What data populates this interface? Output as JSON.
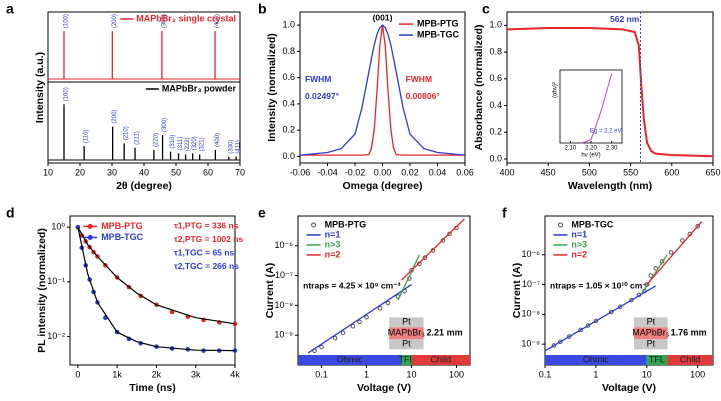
{
  "chart_data": [
    {
      "type": "xrd",
      "panel": "a",
      "xlabel": "2θ (degree)",
      "ylabel": "Intensity (a.u.)",
      "xlim": [
        10,
        70
      ],
      "xticks": [
        10,
        20,
        30,
        40,
        50,
        60,
        70
      ],
      "ylim": [
        0,
        1.4
      ],
      "series": [
        {
          "name": "MAPbBr₃ single crystal",
          "color": "#e8262a",
          "label_color": "#2b3bd1",
          "x": [
            15,
            30.1,
            45.6,
            62.2
          ],
          "values": [
            1,
            1,
            1,
            1
          ],
          "peak_labels": [
            "(100)",
            "(200)",
            "(300)",
            "(400)"
          ]
        },
        {
          "name": "MAPbBr₃ powder",
          "color": "#000000",
          "label_color": "#2b3bd1",
          "x": [
            15,
            21.3,
            30.2,
            33.8,
            37.2,
            43.1,
            45.8,
            48.3,
            50.8,
            53.0,
            55.2,
            57.4,
            62.3,
            66.5,
            68.8
          ],
          "values": [
            1.0,
            0.25,
            0.6,
            0.3,
            0.22,
            0.18,
            0.45,
            0.15,
            0.12,
            0.1,
            0.12,
            0.1,
            0.18,
            0.06,
            0.06
          ],
          "peak_labels": [
            "(100)",
            "(110)",
            "(200)",
            "(210)",
            "(211)",
            "(220)",
            "(300)",
            "(310)",
            "(311)",
            "(222)",
            "(320)",
            "(321)",
            "(400)",
            "(330)",
            "(411)"
          ]
        }
      ]
    },
    {
      "type": "line",
      "panel": "b",
      "xlabel": "Omega (degree)",
      "ylabel": "Intensity (normalized)",
      "xlim": [
        -0.06,
        0.06
      ],
      "xticks": [
        -0.06,
        -0.04,
        -0.02,
        {
          "value": 0,
          "label": "0.00"
        },
        0.02,
        0.04,
        0.06
      ],
      "ylim": [
        -0.05,
        1.1
      ],
      "yticks": [
        {
          "value": 0,
          "label": "0.0"
        },
        0.2,
        0.4,
        0.6,
        0.8,
        {
          "value": 1,
          "label": "1.0"
        }
      ],
      "series": [
        {
          "name": "MPB-PTG",
          "color": "#e8262a",
          "x": [
            -0.06,
            -0.04,
            -0.03,
            -0.02,
            -0.015,
            -0.01,
            -0.008,
            -0.006,
            -0.004,
            -0.002,
            0,
            0.002,
            0.004,
            0.006,
            0.008,
            0.01,
            0.015,
            0.02,
            0.03,
            0.04,
            0.06
          ],
          "values": [
            0.01,
            0.01,
            0.01,
            0.01,
            0.01,
            0.014,
            0.065,
            0.21,
            0.5,
            0.84,
            1,
            0.84,
            0.5,
            0.21,
            0.065,
            0.014,
            0.01,
            0.01,
            0.01,
            0.01,
            0.01
          ]
        },
        {
          "name": "MPB-TGC",
          "color": "#2b3bd1",
          "x": [
            -0.06,
            -0.04,
            -0.03,
            -0.02,
            -0.015,
            -0.01,
            -0.008,
            -0.006,
            -0.004,
            -0.002,
            0,
            0.002,
            0.004,
            0.006,
            0.008,
            0.01,
            0.015,
            0.02,
            0.03,
            0.04,
            0.06
          ],
          "values": [
            0.01,
            0.03,
            0.06,
            0.17,
            0.37,
            0.64,
            0.75,
            0.85,
            0.93,
            0.98,
            1,
            0.98,
            0.93,
            0.85,
            0.75,
            0.64,
            0.37,
            0.17,
            0.06,
            0.03,
            0.01
          ]
        }
      ],
      "annotations": [
        {
          "text": "(001)",
          "color": "#000000"
        },
        {
          "text": "FWHM",
          "color": "#2b3bd1"
        },
        {
          "text": "0.02497°",
          "color": "#2b3bd1"
        },
        {
          "text": "FWHM",
          "color": "#e8262a"
        },
        {
          "text": "0.00806°",
          "color": "#e8262a"
        }
      ]
    },
    {
      "type": "line",
      "panel": "c",
      "xlabel": "Wavelength (nm)",
      "ylabel": "Absorbance (normalized)",
      "xlim": [
        400,
        650
      ],
      "xticks": [
        400,
        450,
        500,
        550,
        600,
        650
      ],
      "ylim": [
        -0.03,
        1.1
      ],
      "yticks": [
        {
          "value": 0,
          "label": "0.0"
        },
        0.2,
        0.4,
        0.6,
        0.8,
        {
          "value": 1,
          "label": "1.0"
        }
      ],
      "series": [
        {
          "color": "#e8262a",
          "x": [
            400,
            450,
            500,
            540,
            555,
            560,
            563,
            566,
            570,
            575,
            580,
            600,
            650
          ],
          "values": [
            0.97,
            0.98,
            0.98,
            0.97,
            0.95,
            0.85,
            0.55,
            0.3,
            0.12,
            0.06,
            0.04,
            0.03,
            0.02
          ]
        }
      ],
      "vline": 562,
      "vline_color": "#2b3bd1",
      "annotations": [
        {
          "text": "562 nm",
          "color": "#2b3bd1"
        }
      ],
      "inset": {
        "xlabel": "hν (eV)",
        "ylabel": "(αhν)²",
        "xlim": [
          2.05,
          2.35
        ],
        "xticks": [
          {
            "value": 2.1,
            "label": "2.10"
          },
          {
            "value": 2.2,
            "label": "2.20"
          },
          {
            "value": 2.3,
            "label": "2.30"
          }
        ],
        "ylim": [
          0,
          1
        ],
        "color": "#d040d0",
        "x": [
          2.15,
          2.18,
          2.2,
          2.22,
          2.25,
          2.28,
          2.3
        ],
        "values": [
          0,
          0.02,
          0.05,
          0.2,
          0.45,
          0.75,
          0.95
        ],
        "annotation": "Eg = 2.2 eV"
      }
    },
    {
      "type": "decay",
      "panel": "d",
      "xlabel": "Time (ns)",
      "ylabel": "PL intensity (normalized)",
      "xlim": [
        -200,
        4000
      ],
      "xticks": [
        0,
        {
          "value": 1000,
          "label": "1k"
        },
        {
          "value": 2000,
          "label": "2k"
        },
        {
          "value": 3000,
          "label": "3k"
        },
        {
          "value": 4000,
          "label": "4k"
        }
      ],
      "log_y": true,
      "ylim": [
        0.003,
        1.6
      ],
      "yticks": [
        {
          "value": 0.01,
          "label": "10⁻²"
        },
        {
          "value": 0.1,
          "label": "10⁻¹"
        },
        {
          "value": 1,
          "label": "10⁰"
        }
      ],
      "series": [
        {
          "name": "MPB-PTG",
          "color": "#e8262a",
          "x": [
            0,
            100,
            200,
            300,
            400,
            500,
            700,
            1000,
            1300,
            1600,
            2000,
            2400,
            2800,
            3200,
            3600,
            4000
          ],
          "values": [
            1,
            0.7,
            0.55,
            0.43,
            0.35,
            0.29,
            0.2,
            0.12,
            0.08,
            0.055,
            0.038,
            0.028,
            0.023,
            0.02,
            0.018,
            0.017
          ]
        },
        {
          "name": "MPB-TGC",
          "color": "#2b3bd1",
          "x": [
            0,
            100,
            200,
            300,
            400,
            500,
            700,
            1000,
            1300,
            1600,
            2000,
            2400,
            2800,
            3200,
            3600,
            4000
          ],
          "values": [
            1,
            0.42,
            0.2,
            0.11,
            0.065,
            0.042,
            0.022,
            0.012,
            0.009,
            0.0075,
            0.0065,
            0.006,
            0.0058,
            0.0055,
            0.0055,
            0.0055
          ]
        }
      ],
      "fits": [
        {
          "color": "#000000",
          "x": [
            0,
            250,
            500,
            1000,
            1500,
            2000,
            3000,
            4000
          ],
          "values": [
            1,
            0.48,
            0.29,
            0.12,
            0.062,
            0.038,
            0.022,
            0.017
          ]
        },
        {
          "color": "#000000",
          "x": [
            0,
            250,
            500,
            1000,
            1500,
            2000,
            3000,
            4000
          ],
          "values": [
            1,
            0.14,
            0.042,
            0.012,
            0.008,
            0.0065,
            0.0056,
            0.0055
          ]
        }
      ],
      "annotations": [
        {
          "text": "τ1,PTG = 336 ns",
          "color": "#e8262a"
        },
        {
          "text": "τ2,PTG = 1002 ns",
          "color": "#e8262a"
        },
        {
          "text": "τ1,TGC = 65 ns",
          "color": "#2b3bd1"
        },
        {
          "text": "τ2,TGC = 266 ns",
          "color": "#2b3bd1"
        }
      ]
    },
    {
      "type": "sclc",
      "panel": "e",
      "xlabel": "Voltage (V)",
      "ylabel": "Current (A)",
      "log_x": true,
      "xlim": [
        0.03,
        200
      ],
      "xticks": [
        0.1,
        1,
        10,
        100
      ],
      "log_y": true,
      "ylim": [
        1e-10,
        1e-05
      ],
      "yticks": [
        {
          "value": 1e-09,
          "label": "10⁻⁹"
        },
        {
          "value": 1e-08,
          "label": "10⁻⁸"
        },
        {
          "value": 1e-07,
          "label": "10⁻⁷"
        },
        {
          "value": 1e-06,
          "label": "10⁻⁶"
        }
      ],
      "series": [
        {
          "name": "MPB-PTG",
          "color": "#555555",
          "x": [
            0.07,
            0.1,
            0.2,
            0.3,
            0.5,
            0.7,
            1,
            2,
            3,
            5,
            7,
            9,
            10,
            15,
            20,
            30,
            50,
            70,
            100
          ],
          "values": [
            3e-10,
            4e-10,
            8e-10,
            1.2e-09,
            2e-09,
            2.8e-09,
            4e-09,
            8e-09,
            1.2e-08,
            2e-08,
            3e-08,
            8e-08,
            1.5e-07,
            2.5e-07,
            4e-07,
            7e-07,
            1.5e-06,
            2.5e-06,
            4e-06
          ]
        }
      ],
      "fits": [
        {
          "name": "n=1",
          "color": "#2b3bd1",
          "x": [
            0.05,
            10
          ],
          "values": [
            2.5e-10,
            5e-08
          ]
        },
        {
          "name": "n>3",
          "color": "#3aa54a",
          "x": [
            5,
            15
          ],
          "values": [
            1.5e-08,
            5e-07
          ]
        },
        {
          "name": "n=2",
          "color": "#e8262a",
          "x": [
            6,
            150
          ],
          "values": [
            7e-08,
            8e-06
          ]
        }
      ],
      "annotations": [
        {
          "text": "ntraps = 4.25 × 10⁹ cm⁻³",
          "color": "#000000"
        }
      ],
      "device": {
        "top": "Pt",
        "layer": "MAPbBr₃",
        "bottom": "Pt",
        "thickness": "2.21 mm"
      },
      "regions": [
        {
          "label": "Ohmic",
          "from": 0.03,
          "to": 6,
          "color": "#3a49e0"
        },
        {
          "label": "TFL",
          "from": 6,
          "to": 10,
          "color": "#2fa84f"
        },
        {
          "label": "Child",
          "from": 10,
          "to": 200,
          "color": "#e03a3a"
        }
      ]
    },
    {
      "type": "sclc",
      "panel": "f",
      "xlabel": "Voltage (V)",
      "ylabel": "Current (A)",
      "log_x": true,
      "xlim": [
        0.1,
        200
      ],
      "xticks": [
        0.1,
        1,
        10,
        100
      ],
      "log_y": true,
      "ylim": [
        2e-10,
        2e-05
      ],
      "yticks": [
        {
          "value": 1e-09,
          "label": "10⁻⁹"
        },
        {
          "value": 1e-08,
          "label": "10⁻⁸"
        },
        {
          "value": 1e-07,
          "label": "10⁻⁷"
        },
        {
          "value": 1e-06,
          "label": "10⁻⁶"
        }
      ],
      "series": [
        {
          "name": "MPB-TGC",
          "color": "#555555",
          "x": [
            0.15,
            0.2,
            0.3,
            0.5,
            0.7,
            1,
            2,
            3,
            5,
            7,
            9,
            10,
            12,
            15,
            20,
            30,
            50,
            70,
            100
          ],
          "values": [
            9e-10,
            1.2e-09,
            1.8e-09,
            3e-09,
            4.2e-09,
            6e-09,
            1.2e-08,
            1.8e-08,
            3e-08,
            4.5e-08,
            6e-08,
            1e-07,
            2e-07,
            3.5e-07,
            6e-07,
            1.2e-06,
            3e-06,
            5e-06,
            9e-06
          ]
        }
      ],
      "fits": [
        {
          "name": "n=1",
          "color": "#2b3bd1",
          "x": [
            0.1,
            15
          ],
          "values": [
            6e-10,
            9e-08
          ]
        },
        {
          "name": "n>3",
          "color": "#3aa54a",
          "x": [
            8,
            25
          ],
          "values": [
            5e-08,
            1e-06
          ]
        },
        {
          "name": "n=2",
          "color": "#e8262a",
          "x": [
            10,
            120
          ],
          "values": [
            1e-07,
            1.3e-05
          ]
        }
      ],
      "annotations": [
        {
          "text": "ntraps = 1.05 × 10¹⁰ cm⁻³",
          "color": "#000000"
        }
      ],
      "device": {
        "top": "Pt",
        "layer": "MAPbBr₃",
        "bottom": "Pt",
        "thickness": "1.76 mm"
      },
      "regions": [
        {
          "label": "Ohmic",
          "from": 0.1,
          "to": 10,
          "color": "#3a49e0"
        },
        {
          "label": "TFL",
          "from": 10,
          "to": 25,
          "color": "#2fa84f"
        },
        {
          "label": "Child",
          "from": 25,
          "to": 200,
          "color": "#e03a3a"
        }
      ]
    }
  ]
}
